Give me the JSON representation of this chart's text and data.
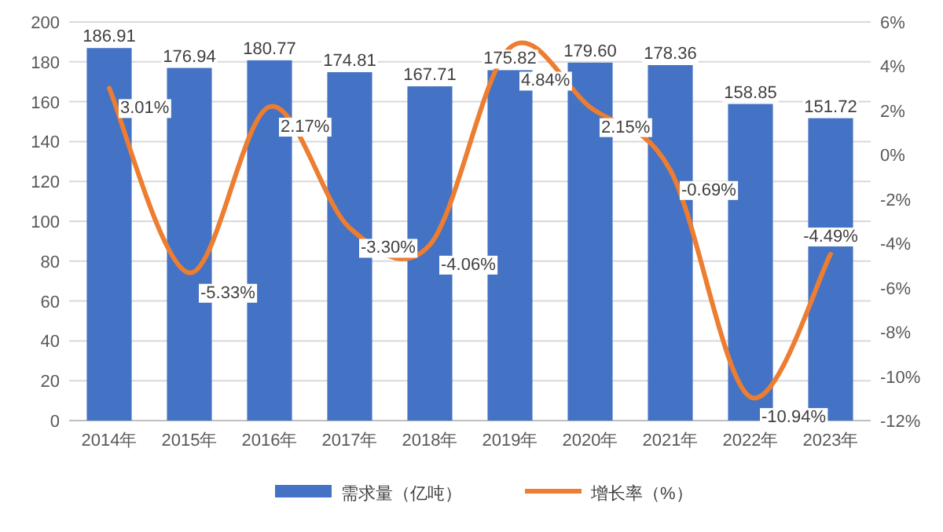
{
  "chart_data": {
    "type": "bar",
    "categories": [
      "2014年",
      "2015年",
      "2016年",
      "2017年",
      "2018年",
      "2019年",
      "2020年",
      "2021年",
      "2022年",
      "2023年"
    ],
    "series": [
      {
        "name": "需求量（亿吨）",
        "color": "#4472c4",
        "values": [
          186.91,
          176.94,
          180.77,
          174.81,
          167.71,
          175.82,
          179.6,
          178.36,
          158.85,
          151.72
        ],
        "value_labels": [
          "186.91",
          "176.94",
          "180.77",
          "174.81",
          "167.71",
          "175.82",
          "179.60",
          "178.36",
          "158.85",
          "151.72"
        ]
      },
      {
        "name": "增长率（%）",
        "type": "line",
        "axis": "y2",
        "color": "#ed7d31",
        "values": [
          3.01,
          -5.33,
          2.17,
          -3.3,
          -4.06,
          4.84,
          2.15,
          -0.69,
          -10.94,
          -4.49
        ],
        "value_labels": [
          "3.01%",
          "-5.33%",
          "2.17%",
          "-3.30%",
          "-4.06%",
          "4.84%",
          "2.15%",
          "-0.69%",
          "-10.94%",
          "-4.49%"
        ]
      }
    ],
    "ylim": [
      0,
      200
    ],
    "yticks": [
      0,
      20,
      40,
      60,
      80,
      100,
      120,
      140,
      160,
      180,
      200
    ],
    "y2lim": [
      -12,
      6
    ],
    "y2ticks": [
      {
        "value": -12,
        "label": "-12%"
      },
      {
        "value": -10,
        "label": "-10%"
      },
      {
        "value": -8,
        "label": "-8%"
      },
      {
        "value": -6,
        "label": "-6%"
      },
      {
        "value": -4,
        "label": "-4%"
      },
      {
        "value": -2,
        "label": "-2%"
      },
      {
        "value": 0,
        "label": "0%"
      },
      {
        "value": 2,
        "label": "2%"
      },
      {
        "value": 4,
        "label": "4%"
      },
      {
        "value": 6,
        "label": "6%"
      }
    ],
    "grid": "y",
    "legend": "bottom"
  }
}
